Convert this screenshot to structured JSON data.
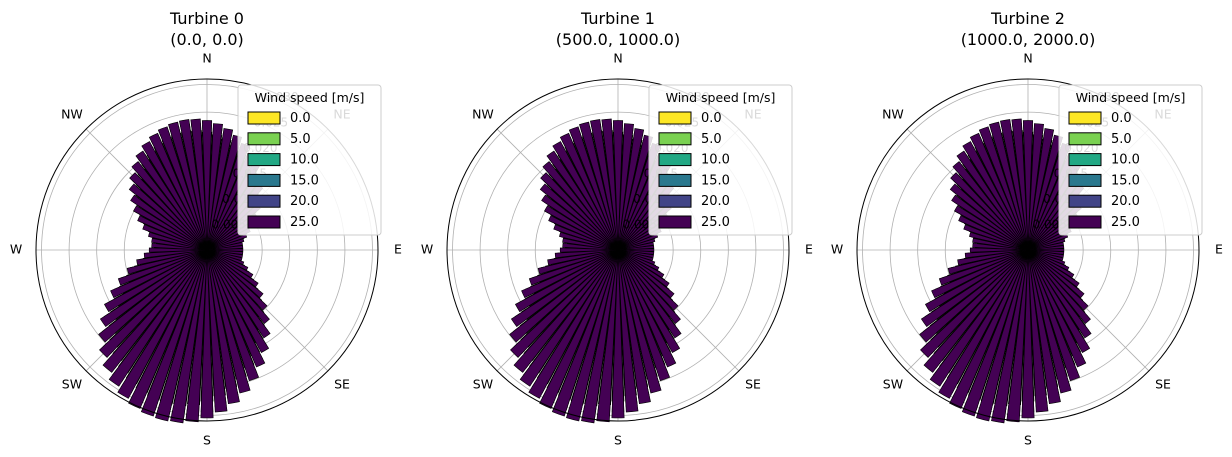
{
  "chart_data": [
    {
      "type": "windrose",
      "title": "Turbine 0",
      "subtitle": "(0.0, 0.0)",
      "directions": [
        "N",
        "NE",
        "E",
        "SE",
        "S",
        "SW",
        "W",
        "NW"
      ],
      "radial_ticks": [
        "0.005",
        "0.010",
        "0.015",
        "0.020",
        "0.025",
        "0.030"
      ],
      "rlim": [
        0,
        0.031
      ],
      "legend_title": "Wind speed [m/s]",
      "legend_position": "top-right",
      "series": [
        {
          "label": "0.0",
          "color": "#fde725"
        },
        {
          "label": "5.0",
          "color": "#7ad151"
        },
        {
          "label": "10.0",
          "color": "#22a884"
        },
        {
          "label": "15.0",
          "color": "#2a788e"
        },
        {
          "label": "20.0",
          "color": "#414487"
        },
        {
          "label": "25.0",
          "color": "#440154"
        }
      ]
    },
    {
      "type": "windrose",
      "title": "Turbine 1",
      "subtitle": "(500.0, 1000.0)",
      "directions": [
        "N",
        "NE",
        "E",
        "SE",
        "S",
        "SW",
        "W",
        "NW"
      ],
      "radial_ticks": [
        "0.005",
        "0.010",
        "0.015",
        "0.020",
        "0.025",
        "0.030"
      ],
      "rlim": [
        0,
        0.031
      ],
      "legend_title": "Wind speed [m/s]",
      "legend_position": "top-right",
      "series": [
        {
          "label": "0.0",
          "color": "#fde725"
        },
        {
          "label": "5.0",
          "color": "#7ad151"
        },
        {
          "label": "10.0",
          "color": "#22a884"
        },
        {
          "label": "15.0",
          "color": "#2a788e"
        },
        {
          "label": "20.0",
          "color": "#414487"
        },
        {
          "label": "25.0",
          "color": "#440154"
        }
      ]
    },
    {
      "type": "windrose",
      "title": "Turbine 2",
      "subtitle": "(1000.0, 2000.0)",
      "directions": [
        "N",
        "NE",
        "E",
        "SE",
        "S",
        "SW",
        "W",
        "NW"
      ],
      "radial_ticks": [
        "0.005",
        "0.010",
        "0.015",
        "0.020",
        "0.025",
        "0.030"
      ],
      "rlim": [
        0,
        0.031
      ],
      "legend_title": "Wind speed [m/s]",
      "legend_position": "top-right",
      "series": [
        {
          "label": "0.0",
          "color": "#fde725"
        },
        {
          "label": "5.0",
          "color": "#7ad151"
        },
        {
          "label": "10.0",
          "color": "#22a884"
        },
        {
          "label": "15.0",
          "color": "#2a788e"
        },
        {
          "label": "20.0",
          "color": "#414487"
        },
        {
          "label": "25.0",
          "color": "#440154"
        }
      ]
    }
  ]
}
